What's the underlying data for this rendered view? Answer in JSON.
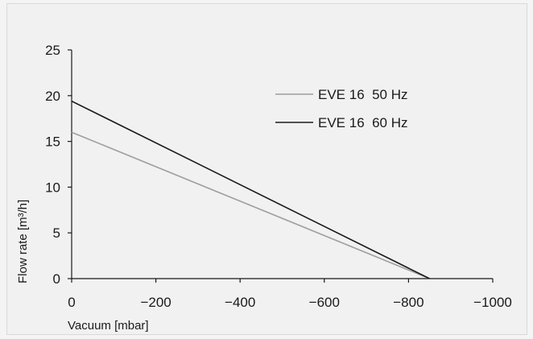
{
  "chart_data": {
    "type": "line",
    "title": "",
    "xlabel": "Vacuum [mbar]",
    "ylabel": "Flow rate [m³/h]",
    "xlim": [
      0,
      -1000
    ],
    "ylim": [
      0,
      25
    ],
    "x_ticks": [
      0,
      -200,
      -400,
      -600,
      -800,
      -1000
    ],
    "x_tick_labels": [
      "0",
      "−200",
      "−400",
      "−600",
      "−800",
      "−1000"
    ],
    "y_ticks": [
      0,
      5,
      10,
      15,
      20,
      25
    ],
    "y_tick_labels": [
      "0",
      "5",
      "10",
      "15",
      "20",
      "25"
    ],
    "grid": false,
    "legend_position": "top-right",
    "series": [
      {
        "name": "EVE 16  50 Hz",
        "color": "#9e9e9e",
        "x": [
          0,
          -850
        ],
        "y": [
          16,
          0
        ]
      },
      {
        "name": "EVE 16  60 Hz",
        "color": "#1a1a1a",
        "x": [
          0,
          -850
        ],
        "y": [
          19.4,
          0
        ]
      }
    ]
  }
}
